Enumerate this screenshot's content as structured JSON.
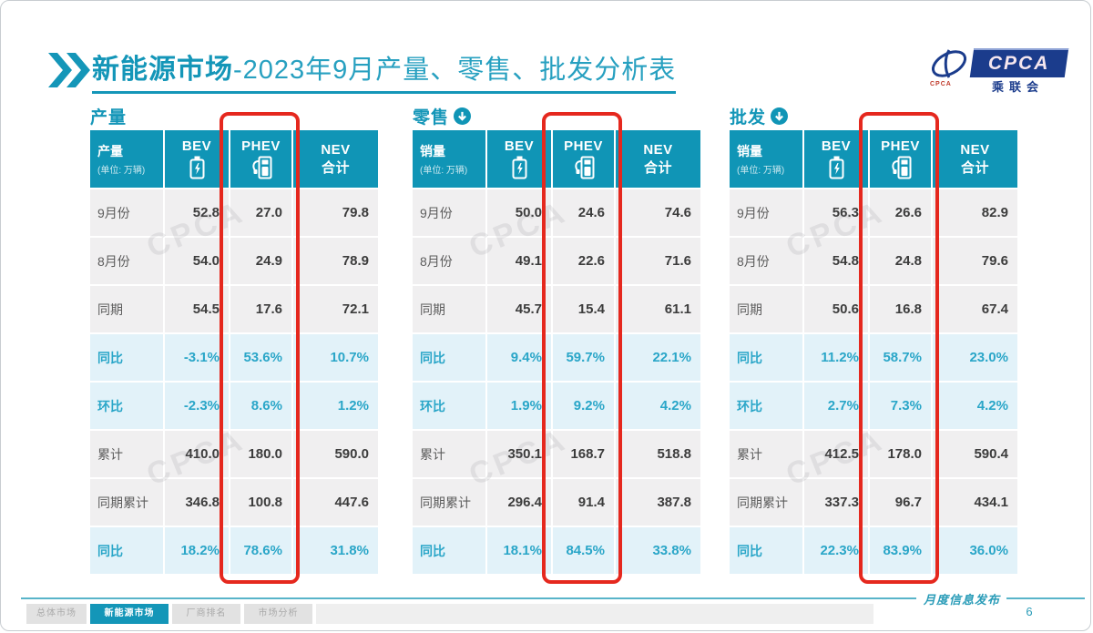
{
  "header": {
    "title_bold": "新能源市场",
    "title_rest": "-2023年9月产量、零售、批发分析表",
    "logo_text": "CPCA",
    "logo_subtext": "乘联会",
    "logo_minitext": "CPCA"
  },
  "watermark": "CPCA",
  "colors": {
    "teal": "#1095b6",
    "teal_text": "#2aa6c8",
    "highlight_row_bg": "#e2f2f9",
    "row_bg": "#f0eff0",
    "red_box": "#e5281e",
    "logo_blue": "#1b3c8c"
  },
  "tables": [
    {
      "section_label": "产量",
      "corner_title": "产量",
      "corner_unit": "(单位: 万辆)",
      "col_bev": "BEV",
      "col_phev": "PHEV",
      "col_nev_line1": "NEV",
      "col_nev_line2": "合计",
      "rows": [
        {
          "label": "9月份",
          "values": [
            "52.8",
            "27.0",
            "79.8"
          ],
          "highlight": false
        },
        {
          "label": "8月份",
          "values": [
            "54.0",
            "24.9",
            "78.9"
          ],
          "highlight": false
        },
        {
          "label": "同期",
          "values": [
            "54.5",
            "17.6",
            "72.1"
          ],
          "highlight": false
        },
        {
          "label": "同比",
          "values": [
            "-3.1%",
            "53.6%",
            "10.7%"
          ],
          "highlight": true
        },
        {
          "label": "环比",
          "values": [
            "-2.3%",
            "8.6%",
            "1.2%"
          ],
          "highlight": true
        },
        {
          "label": "累计",
          "values": [
            "410.0",
            "180.0",
            "590.0"
          ],
          "highlight": false
        },
        {
          "label": "同期累计",
          "values": [
            "346.8",
            "100.8",
            "447.6"
          ],
          "highlight": false
        },
        {
          "label": "同比",
          "values": [
            "18.2%",
            "78.6%",
            "31.8%"
          ],
          "highlight": true
        }
      ]
    },
    {
      "section_label": "零售",
      "corner_title": "销量",
      "corner_unit": "(单位: 万辆)",
      "col_bev": "BEV",
      "col_phev": "PHEV",
      "col_nev_line1": "NEV",
      "col_nev_line2": "合计",
      "rows": [
        {
          "label": "9月份",
          "values": [
            "50.0",
            "24.6",
            "74.6"
          ],
          "highlight": false
        },
        {
          "label": "8月份",
          "values": [
            "49.1",
            "22.6",
            "71.6"
          ],
          "highlight": false
        },
        {
          "label": "同期",
          "values": [
            "45.7",
            "15.4",
            "61.1"
          ],
          "highlight": false
        },
        {
          "label": "同比",
          "values": [
            "9.4%",
            "59.7%",
            "22.1%"
          ],
          "highlight": true
        },
        {
          "label": "环比",
          "values": [
            "1.9%",
            "9.2%",
            "4.2%"
          ],
          "highlight": true
        },
        {
          "label": "累计",
          "values": [
            "350.1",
            "168.7",
            "518.8"
          ],
          "highlight": false
        },
        {
          "label": "同期累计",
          "values": [
            "296.4",
            "91.4",
            "387.8"
          ],
          "highlight": false
        },
        {
          "label": "同比",
          "values": [
            "18.1%",
            "84.5%",
            "33.8%"
          ],
          "highlight": true
        }
      ]
    },
    {
      "section_label": "批发",
      "corner_title": "销量",
      "corner_unit": "(单位: 万辆)",
      "col_bev": "BEV",
      "col_phev": "PHEV",
      "col_nev_line1": "NEV",
      "col_nev_line2": "合计",
      "rows": [
        {
          "label": "9月份",
          "values": [
            "56.3",
            "26.6",
            "82.9"
          ],
          "highlight": false
        },
        {
          "label": "8月份",
          "values": [
            "54.8",
            "24.8",
            "79.6"
          ],
          "highlight": false
        },
        {
          "label": "同期",
          "values": [
            "50.6",
            "16.8",
            "67.4"
          ],
          "highlight": false
        },
        {
          "label": "同比",
          "values": [
            "11.2%",
            "58.7%",
            "23.0%"
          ],
          "highlight": true
        },
        {
          "label": "环比",
          "values": [
            "2.7%",
            "7.3%",
            "4.2%"
          ],
          "highlight": true
        },
        {
          "label": "累计",
          "values": [
            "412.5",
            "178.0",
            "590.4"
          ],
          "highlight": false
        },
        {
          "label": "同期累计",
          "values": [
            "337.3",
            "96.7",
            "434.1"
          ],
          "highlight": false
        },
        {
          "label": "同比",
          "values": [
            "22.3%",
            "83.9%",
            "36.0%"
          ],
          "highlight": true
        }
      ]
    }
  ],
  "footer": {
    "tabs": [
      "总体市场",
      "新能源市场",
      "厂商排名",
      "市场分析"
    ],
    "active_tab_index": 1,
    "caption": "月度信息发布",
    "page_number": "6"
  }
}
